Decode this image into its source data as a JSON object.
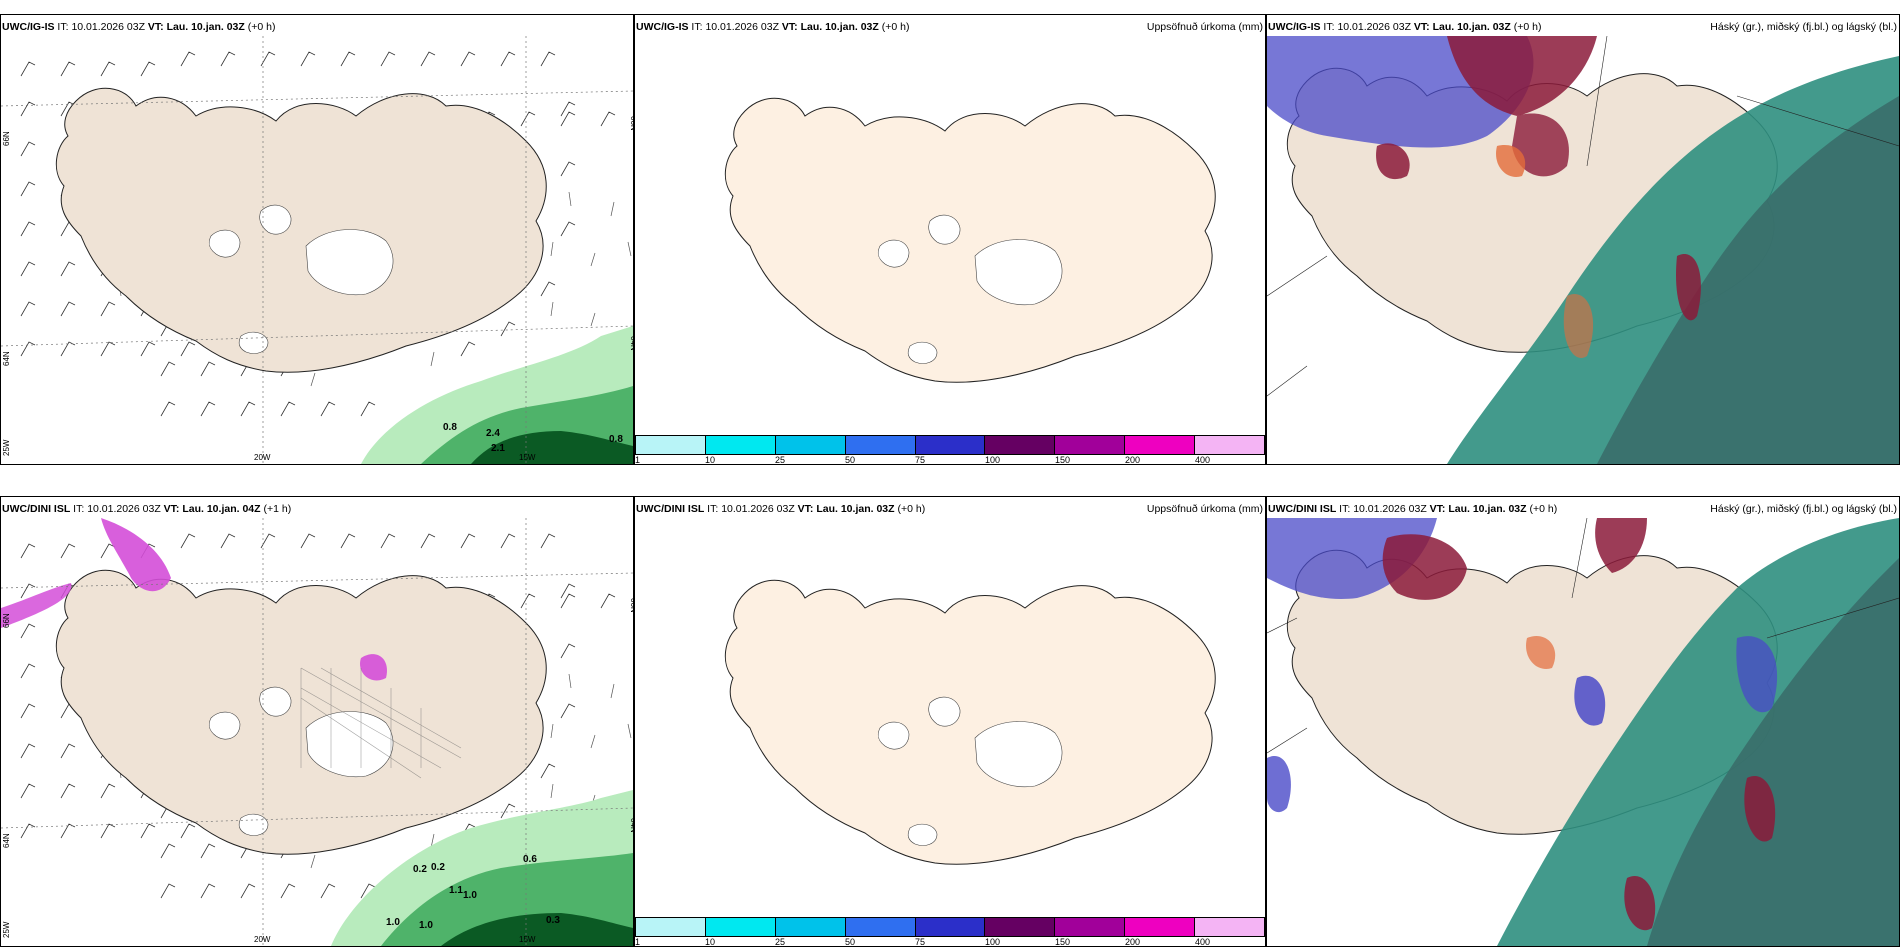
{
  "rows": [
    {
      "wind": {
        "model": "UWC/IG-IS",
        "it_label": "IT:",
        "it": "10.01.2026 03Z",
        "vt_label": "VT:",
        "vt": "Lau. 10.jan. 03Z",
        "offset": "(+0 h)",
        "precip_labels": [
          "0.8",
          "2.4",
          "2.1",
          "0.8"
        ]
      },
      "precip": {
        "model": "UWC/IG-IS",
        "it_label": "IT:",
        "it": "10.01.2026 03Z",
        "vt_label": "VT:",
        "vt": "Lau. 10.jan. 03Z",
        "offset": "(+0 h)",
        "title": "Uppsöfnuð úrkoma (mm)"
      },
      "cloud": {
        "model": "UWC/IG-IS",
        "it_label": "IT:",
        "it": "10.01.2026 03Z",
        "vt_label": "VT:",
        "vt": "Lau. 10.jan. 03Z",
        "offset": "(+0 h)",
        "title": "Háský (gr.), miðský (fj.bl.) og lágský (bl.)"
      }
    },
    {
      "wind": {
        "model": "UWC/DINI ISL",
        "it_label": "IT:",
        "it": "10.01.2026 03Z",
        "vt_label": "VT:",
        "vt": "Lau. 10.jan. 04Z",
        "offset": "(+1 h)",
        "precip_labels": [
          "0.2",
          "0.2",
          "1.1",
          "1.0",
          "1.0",
          "1.0",
          "0.6",
          "0.3"
        ]
      },
      "precip": {
        "model": "UWC/DINI ISL",
        "it_label": "IT:",
        "it": "10.01.2026 03Z",
        "vt_label": "VT:",
        "vt": "Lau. 10.jan. 03Z",
        "offset": "(+0 h)",
        "title": "Uppsöfnuð úrkoma (mm)"
      },
      "cloud": {
        "model": "UWC/DINI ISL",
        "it_label": "IT:",
        "it": "10.01.2026 03Z",
        "vt_label": "VT:",
        "vt": "Lau. 10.jan. 03Z",
        "offset": "(+0 h)",
        "title": "Háský (gr.), miðský (fj.bl.) og lágský (bl.)"
      }
    }
  ],
  "grid_labels": {
    "lat_upper": "66N",
    "lat_lower": "64N",
    "lon_west_edge": "25W",
    "lon_20": "20W",
    "lon_15": "15W"
  },
  "colorbar": {
    "ticks": [
      "1",
      "10",
      "25",
      "50",
      "75",
      "100",
      "150",
      "200",
      "400"
    ],
    "colors": [
      "#b8f4f7",
      "#00e8f0",
      "#00c2ea",
      "#2f6ff0",
      "#2b2fc9",
      "#650062",
      "#a1009a",
      "#ee00c0",
      "#f4b4f4"
    ]
  },
  "colors": {
    "land_wind": "#efe3d6",
    "land_precip": "#fdf0e2",
    "glacier": "#ffffff",
    "precip_light": "#b8ebbd",
    "precip_mid": "#4fb36a",
    "precip_dark": "#0b5a24",
    "snow_magenta": "#d44ed8",
    "cloud_high": "#2f8f7f",
    "cloud_mid": "#4a4ac8",
    "cloud_low": "#8b1a3a"
  }
}
